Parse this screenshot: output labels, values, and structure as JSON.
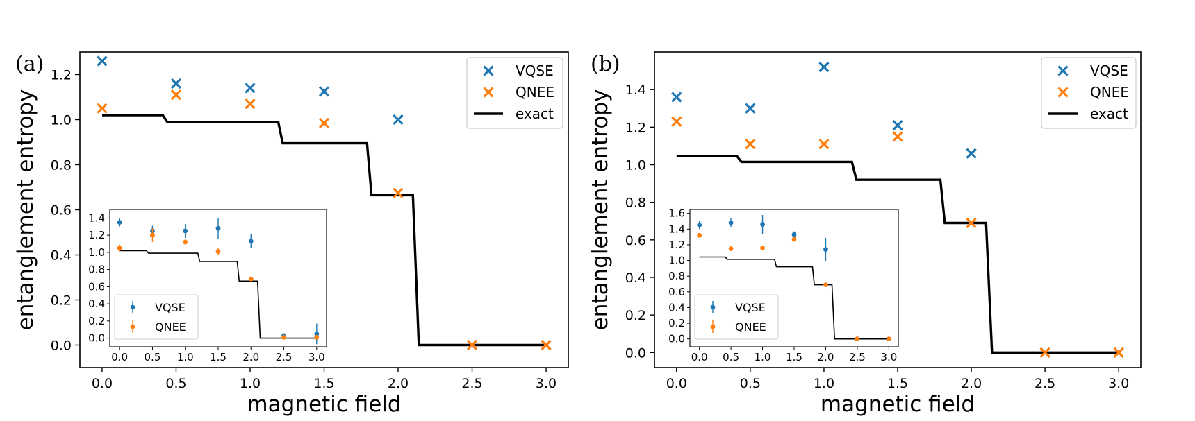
{
  "colors": {
    "vqse": "#1f77b4",
    "qnee": "#ff7f0e",
    "exact": "#000000",
    "legend_border": "#cccccc"
  },
  "chart_data": [
    {
      "panel_label": "(a)",
      "type": "scatter",
      "xlabel": "magnetic field",
      "ylabel": "entanglement entropy",
      "xlim": [
        -0.15,
        3.15
      ],
      "ylim": [
        -0.1,
        1.3
      ],
      "xticks": [
        0.0,
        0.5,
        1.0,
        1.5,
        2.0,
        2.5,
        3.0
      ],
      "xtick_labels": [
        "0.0",
        "0.5",
        "1.0",
        "1.5",
        "2.0",
        "2.5",
        "3.0"
      ],
      "yticks": [
        0.0,
        0.2,
        0.4,
        0.6,
        0.8,
        1.0,
        1.2
      ],
      "ytick_labels": [
        "0.0",
        "0.2",
        "0.4",
        "0.6",
        "0.8",
        "1.0",
        "1.2"
      ],
      "legend_position": "top-right",
      "legend": [
        "VQSE",
        "QNEE",
        "exact"
      ],
      "series": [
        {
          "name": "VQSE",
          "marker": "x",
          "x": [
            0.0,
            0.5,
            1.0,
            1.5,
            2.0,
            2.5,
            3.0
          ],
          "y": [
            1.26,
            1.16,
            1.14,
            1.125,
            1.0,
            0.0,
            0.0
          ]
        },
        {
          "name": "QNEE",
          "marker": "x",
          "x": [
            0.0,
            0.5,
            1.0,
            1.5,
            2.0,
            2.5,
            3.0
          ],
          "y": [
            1.05,
            1.11,
            1.07,
            0.985,
            0.675,
            0.0,
            0.0
          ]
        },
        {
          "name": "exact",
          "marker": "line",
          "x": [
            0.0,
            0.41,
            0.44,
            1.19,
            1.22,
            1.79,
            1.82,
            2.1,
            2.14,
            3.0
          ],
          "y": [
            1.02,
            1.02,
            0.99,
            0.99,
            0.895,
            0.895,
            0.665,
            0.665,
            0.0,
            0.0
          ]
        }
      ],
      "inset": {
        "xlim": [
          -0.15,
          3.15
        ],
        "ylim": [
          -0.1,
          1.5
        ],
        "xticks": [
          0.0,
          0.5,
          1.0,
          1.5,
          2.0,
          2.5,
          3.0
        ],
        "xtick_labels": [
          "0.0",
          "0.5",
          "1.0",
          "1.5",
          "2.0",
          "2.5",
          "3.0"
        ],
        "yticks": [
          0.0,
          0.2,
          0.4,
          0.6,
          0.8,
          1.0,
          1.2,
          1.4
        ],
        "ytick_labels": [
          "0.0",
          "0.2",
          "0.4",
          "0.6",
          "0.8",
          "1.0",
          "1.2",
          "1.4"
        ],
        "legend_position": "lower-left",
        "legend": [
          "VQSE",
          "QNEE"
        ],
        "series": [
          {
            "name": "VQSE",
            "marker": "errorbar",
            "x": [
              0.0,
              0.5,
              1.0,
              1.5,
              2.0,
              2.5,
              3.0
            ],
            "y": [
              1.35,
              1.25,
              1.25,
              1.28,
              1.13,
              0.03,
              0.05
            ],
            "err": [
              0.05,
              0.06,
              0.08,
              0.12,
              0.08,
              0.02,
              0.12
            ]
          },
          {
            "name": "QNEE",
            "marker": "errorbar",
            "x": [
              0.0,
              0.5,
              1.0,
              1.5,
              2.0,
              2.5,
              3.0
            ],
            "y": [
              1.05,
              1.2,
              1.12,
              1.01,
              0.69,
              0.01,
              0.01
            ],
            "err": [
              0.04,
              0.08,
              0.03,
              0.04,
              0.02,
              0.01,
              0.01
            ]
          },
          {
            "name": "exact",
            "marker": "line",
            "x": [
              0.0,
              0.41,
              0.44,
              1.19,
              1.22,
              1.79,
              1.82,
              2.1,
              2.14,
              3.0
            ],
            "y": [
              1.02,
              1.02,
              0.99,
              0.99,
              0.895,
              0.895,
              0.665,
              0.665,
              0.0,
              0.0
            ]
          }
        ]
      }
    },
    {
      "panel_label": "(b)",
      "type": "scatter",
      "xlabel": "magnetic field",
      "ylabel": "entanglement entropy",
      "xlim": [
        -0.15,
        3.15
      ],
      "ylim": [
        -0.08,
        1.6
      ],
      "xticks": [
        0.0,
        0.5,
        1.0,
        1.5,
        2.0,
        2.5,
        3.0
      ],
      "xtick_labels": [
        "0.0",
        "0.5",
        "1.0",
        "1.5",
        "2.0",
        "2.5",
        "3.0"
      ],
      "yticks": [
        0.0,
        0.2,
        0.4,
        0.6,
        0.8,
        1.0,
        1.2,
        1.4
      ],
      "ytick_labels": [
        "0.0",
        "0.2",
        "0.4",
        "0.6",
        "0.8",
        "1.0",
        "1.2",
        "1.4"
      ],
      "legend_position": "top-right",
      "legend": [
        "VQSE",
        "QNEE",
        "exact"
      ],
      "series": [
        {
          "name": "VQSE",
          "marker": "x",
          "x": [
            0.0,
            0.5,
            1.0,
            1.5,
            2.0,
            2.5,
            3.0
          ],
          "y": [
            1.36,
            1.3,
            1.52,
            1.21,
            1.06,
            0.0,
            0.0
          ]
        },
        {
          "name": "QNEE",
          "marker": "x",
          "x": [
            0.0,
            0.5,
            1.0,
            1.5,
            2.0,
            2.5,
            3.0
          ],
          "y": [
            1.23,
            1.11,
            1.11,
            1.15,
            0.69,
            0.0,
            0.0
          ]
        },
        {
          "name": "exact",
          "marker": "line",
          "x": [
            0.0,
            0.41,
            0.44,
            1.19,
            1.22,
            1.79,
            1.82,
            2.1,
            2.14,
            3.0
          ],
          "y": [
            1.045,
            1.045,
            1.015,
            1.015,
            0.92,
            0.92,
            0.69,
            0.69,
            0.0,
            0.0
          ]
        }
      ],
      "inset": {
        "xlim": [
          -0.15,
          3.15
        ],
        "ylim": [
          -0.1,
          1.65
        ],
        "xticks": [
          0.0,
          0.5,
          1.0,
          1.5,
          2.0,
          2.5,
          3.0
        ],
        "xtick_labels": [
          "0.0",
          "0.5",
          "1.0",
          "1.5",
          "2.0",
          "2.5",
          "3.0"
        ],
        "yticks": [
          0.0,
          0.2,
          0.4,
          0.6,
          0.8,
          1.0,
          1.2,
          1.4,
          1.6
        ],
        "ytick_labels": [
          "0.0",
          "0.2",
          "0.4",
          "0.6",
          "0.8",
          "1.0",
          "1.2",
          "1.4",
          "1.6"
        ],
        "legend_position": "lower-left",
        "legend": [
          "VQSE",
          "QNEE"
        ],
        "series": [
          {
            "name": "VQSE",
            "marker": "errorbar",
            "x": [
              0.0,
              0.5,
              1.0,
              1.5,
              2.0,
              2.5,
              3.0
            ],
            "y": [
              1.45,
              1.48,
              1.46,
              1.33,
              1.14,
              0.0,
              0.0
            ],
            "err": [
              0.05,
              0.06,
              0.12,
              0.04,
              0.15,
              0.01,
              0.01
            ]
          },
          {
            "name": "QNEE",
            "marker": "errorbar",
            "x": [
              0.0,
              0.5,
              1.0,
              1.5,
              2.0,
              2.5,
              3.0
            ],
            "y": [
              1.32,
              1.15,
              1.16,
              1.27,
              0.69,
              0.0,
              0.0
            ],
            "err": [
              0.03,
              0.02,
              0.03,
              0.03,
              0.02,
              0.01,
              0.01
            ]
          },
          {
            "name": "exact",
            "marker": "line",
            "x": [
              0.0,
              0.41,
              0.44,
              1.19,
              1.22,
              1.79,
              1.82,
              2.1,
              2.14,
              3.0
            ],
            "y": [
              1.045,
              1.045,
              1.015,
              1.015,
              0.92,
              0.92,
              0.69,
              0.69,
              0.0,
              0.0
            ]
          }
        ]
      }
    }
  ]
}
